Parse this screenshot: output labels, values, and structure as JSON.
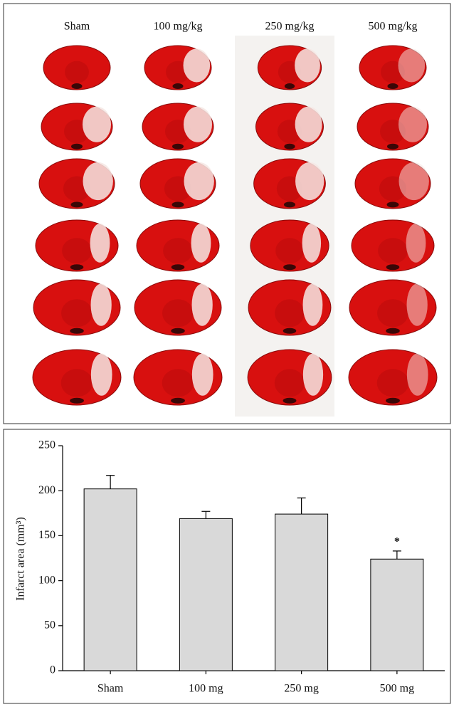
{
  "photo_panel": {
    "column_labels": [
      "Sham",
      "100 mg/kg",
      "250 mg/kg",
      "500 mg/kg"
    ]
  },
  "chart_data": {
    "type": "bar",
    "y_label": "Infarct area (mm³)",
    "categories": [
      "Sham",
      "100 mg",
      "250 mg",
      "500 mg"
    ],
    "values": [
      202,
      169,
      174,
      124
    ],
    "errors": [
      15,
      8,
      18,
      9
    ],
    "color": "#d9d9d9",
    "annotations": [
      {
        "category": "500 mg",
        "text": "*"
      }
    ],
    "ylim": [
      0,
      250
    ],
    "yticks": [
      0,
      50,
      100,
      150,
      200,
      250
    ]
  }
}
